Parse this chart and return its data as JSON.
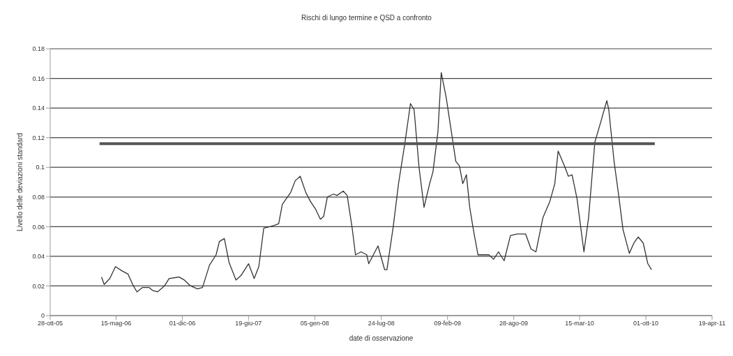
{
  "chart_data": {
    "type": "line",
    "title": "Rischi di lungo termine e QSD a confronto",
    "xlabel": "date di osservazione",
    "ylabel": "Livello delle deviazioni standard",
    "series": [
      {
        "color": "#333333",
        "x": [
          "2006-04-01",
          "2006-04-09",
          "2006-04-26",
          "2006-05-13",
          "2006-06-03",
          "2006-06-20",
          "2006-07-04",
          "2006-07-17",
          "2006-08-03",
          "2006-08-22",
          "2006-09-02",
          "2006-09-17",
          "2006-10-08",
          "2006-10-22",
          "2006-11-21",
          "2006-12-07",
          "2006-12-26",
          "2007-01-16",
          "2007-01-31",
          "2007-02-21",
          "2007-03-13",
          "2007-03-23",
          "2007-04-07",
          "2007-04-21",
          "2007-05-12",
          "2007-05-27",
          "2007-06-19",
          "2007-07-06",
          "2007-07-20",
          "2007-08-04",
          "2007-08-23",
          "2007-09-07",
          "2007-09-18",
          "2007-09-29",
          "2007-10-24",
          "2007-11-07",
          "2007-11-22",
          "2007-12-09",
          "2007-12-23",
          "2008-01-07",
          "2008-01-22",
          "2008-02-01",
          "2008-02-12",
          "2008-03-02",
          "2008-03-12",
          "2008-03-31",
          "2008-04-12",
          "2008-04-27",
          "2008-05-07",
          "2008-05-24",
          "2008-06-10",
          "2008-06-16",
          "2008-07-14",
          "2008-08-03",
          "2008-08-10",
          "2008-08-29",
          "2008-09-14",
          "2008-10-03",
          "2008-10-20",
          "2008-10-31",
          "2008-11-15",
          "2008-11-30",
          "2008-12-17",
          "2008-12-27",
          "2009-01-11",
          "2009-01-21",
          "2009-02-05",
          "2009-02-24",
          "2009-03-06",
          "2009-03-17",
          "2009-03-27",
          "2009-04-07",
          "2009-04-17",
          "2009-04-28",
          "2009-05-12",
          "2009-06-14",
          "2009-06-28",
          "2009-07-13",
          "2009-07-30",
          "2009-08-18",
          "2009-09-07",
          "2009-10-03",
          "2009-10-19",
          "2009-11-03",
          "2009-11-24",
          "2009-12-15",
          "2009-12-30",
          "2010-01-09",
          "2010-01-28",
          "2010-02-09",
          "2010-02-20",
          "2010-03-07",
          "2010-03-28",
          "2010-04-11",
          "2010-04-30",
          "2010-05-17",
          "2010-06-05",
          "2010-06-11",
          "2010-06-27",
          "2010-07-11",
          "2010-07-24",
          "2010-08-12",
          "2010-08-26",
          "2010-09-08",
          "2010-09-23",
          "2010-10-07",
          "2010-10-18"
        ],
        "values": [
          0.026,
          0.021,
          0.025,
          0.033,
          0.03,
          0.028,
          0.021,
          0.016,
          0.019,
          0.019,
          0.017,
          0.016,
          0.02,
          0.025,
          0.026,
          0.024,
          0.02,
          0.018,
          0.019,
          0.034,
          0.041,
          0.05,
          0.052,
          0.036,
          0.024,
          0.027,
          0.035,
          0.025,
          0.033,
          0.059,
          0.06,
          0.061,
          0.062,
          0.075,
          0.083,
          0.091,
          0.094,
          0.083,
          0.077,
          0.072,
          0.065,
          0.067,
          0.08,
          0.082,
          0.081,
          0.084,
          0.081,
          0.059,
          0.041,
          0.043,
          0.041,
          0.035,
          0.047,
          0.031,
          0.031,
          0.06,
          0.089,
          0.116,
          0.143,
          0.139,
          0.1,
          0.073,
          0.089,
          0.097,
          0.124,
          0.164,
          0.147,
          0.119,
          0.104,
          0.101,
          0.089,
          0.095,
          0.073,
          0.058,
          0.041,
          0.041,
          0.038,
          0.043,
          0.037,
          0.054,
          0.055,
          0.055,
          0.045,
          0.043,
          0.066,
          0.077,
          0.089,
          0.111,
          0.101,
          0.094,
          0.095,
          0.079,
          0.043,
          0.066,
          0.117,
          0.13,
          0.145,
          0.139,
          0.104,
          0.081,
          0.058,
          0.042,
          0.049,
          0.053,
          0.049,
          0.035,
          0.031
        ]
      },
      {
        "color": "#555555",
        "x": [
          "2006-03-26",
          "2010-10-28"
        ],
        "values": [
          0.116,
          0.116
        ]
      }
    ],
    "xlim": [
      "2005-10-28",
      "2011-04-19"
    ],
    "xticks": [
      {
        "value": "2005-10-28",
        "label": "28-ott-05"
      },
      {
        "value": "2006-05-15",
        "label": "15-mag-06"
      },
      {
        "value": "2006-12-01",
        "label": "01-dic-06"
      },
      {
        "value": "2007-06-19",
        "label": "19-giu-07"
      },
      {
        "value": "2008-01-05",
        "label": "05-gen-08"
      },
      {
        "value": "2008-07-24",
        "label": "24-lug-08"
      },
      {
        "value": "2009-02-09",
        "label": "09-feb-09"
      },
      {
        "value": "2009-08-28",
        "label": "28-ago-09"
      },
      {
        "value": "2010-03-15",
        "label": "15-mar-10"
      },
      {
        "value": "2010-10-01",
        "label": "01-ott-10"
      },
      {
        "value": "2011-04-19",
        "label": "19-apr-11"
      }
    ],
    "ylim": [
      0,
      0.18
    ],
    "yticks": [
      0,
      0.02,
      0.04,
      0.06,
      0.08,
      0.1,
      0.12,
      0.14,
      0.16,
      0.18
    ],
    "grid": "y",
    "legend": false,
    "marker": "none",
    "line_style": "solid"
  }
}
